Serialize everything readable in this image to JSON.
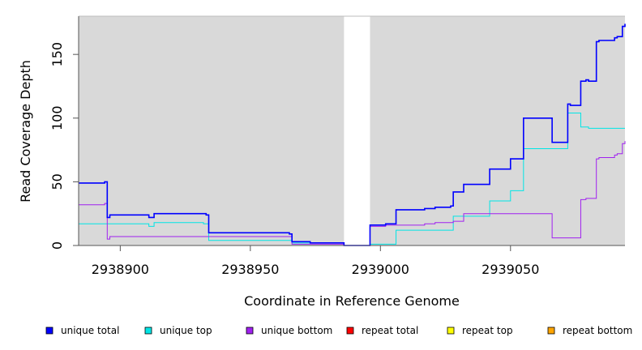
{
  "chart_data": {
    "type": "line",
    "xlabel": "Coordinate in Reference Genome",
    "ylabel": "Read Coverage Depth",
    "xlim": [
      2938884,
      2939094
    ],
    "ylim": [
      0,
      180
    ],
    "x_ticks": [
      2938900,
      2938950,
      2939000,
      2939050
    ],
    "y_ticks": [
      0,
      50,
      100,
      150
    ],
    "panel_background": "#d9d9d9",
    "grid": false,
    "gap": {
      "x_start": 2938986,
      "x_end": 2938996,
      "color": "#ffffff"
    },
    "series": [
      {
        "name": "unique total",
        "color": "#0000ff",
        "step": true,
        "points": [
          [
            2938884,
            49
          ],
          [
            2938894,
            49
          ],
          [
            2938894,
            50
          ],
          [
            2938895,
            50
          ],
          [
            2938895,
            22
          ],
          [
            2938896,
            22
          ],
          [
            2938896,
            24
          ],
          [
            2938911,
            24
          ],
          [
            2938911,
            22
          ],
          [
            2938913,
            22
          ],
          [
            2938913,
            25
          ],
          [
            2938933,
            25
          ],
          [
            2938933,
            24
          ],
          [
            2938934,
            24
          ],
          [
            2938934,
            10
          ],
          [
            2938965,
            10
          ],
          [
            2938965,
            9
          ],
          [
            2938966,
            9
          ],
          [
            2938966,
            3
          ],
          [
            2938973,
            3
          ],
          [
            2938973,
            2
          ],
          [
            2938986,
            2
          ],
          [
            2938986,
            0
          ],
          [
            2938996,
            0
          ],
          [
            2938996,
            16
          ],
          [
            2939002,
            16
          ],
          [
            2939002,
            17
          ],
          [
            2939006,
            17
          ],
          [
            2939006,
            28
          ],
          [
            2939017,
            28
          ],
          [
            2939017,
            29
          ],
          [
            2939021,
            29
          ],
          [
            2939021,
            30
          ],
          [
            2939027,
            30
          ],
          [
            2939027,
            31
          ],
          [
            2939028,
            31
          ],
          [
            2939028,
            42
          ],
          [
            2939032,
            42
          ],
          [
            2939032,
            48
          ],
          [
            2939042,
            48
          ],
          [
            2939042,
            60
          ],
          [
            2939050,
            60
          ],
          [
            2939050,
            68
          ],
          [
            2939055,
            68
          ],
          [
            2939055,
            100
          ],
          [
            2939066,
            100
          ],
          [
            2939066,
            81
          ],
          [
            2939072,
            81
          ],
          [
            2939072,
            111
          ],
          [
            2939073,
            111
          ],
          [
            2939073,
            110
          ],
          [
            2939077,
            110
          ],
          [
            2939077,
            129
          ],
          [
            2939079,
            129
          ],
          [
            2939079,
            130
          ],
          [
            2939080,
            130
          ],
          [
            2939080,
            129
          ],
          [
            2939083,
            129
          ],
          [
            2939083,
            160
          ],
          [
            2939084,
            160
          ],
          [
            2939084,
            161
          ],
          [
            2939090,
            161
          ],
          [
            2939090,
            163
          ],
          [
            2939091,
            163
          ],
          [
            2939091,
            164
          ],
          [
            2939093,
            164
          ],
          [
            2939093,
            172
          ],
          [
            2939094,
            172
          ],
          [
            2939094,
            174
          ]
        ]
      },
      {
        "name": "unique top",
        "color": "#00e5e5",
        "step": true,
        "points": [
          [
            2938884,
            17
          ],
          [
            2938911,
            17
          ],
          [
            2938911,
            15
          ],
          [
            2938913,
            15
          ],
          [
            2938913,
            18
          ],
          [
            2938932,
            18
          ],
          [
            2938932,
            17
          ],
          [
            2938934,
            17
          ],
          [
            2938934,
            4
          ],
          [
            2938966,
            4
          ],
          [
            2938966,
            2
          ],
          [
            2938986,
            2
          ],
          [
            2938986,
            0
          ],
          [
            2938996,
            0
          ],
          [
            2938996,
            1
          ],
          [
            2939006,
            1
          ],
          [
            2939006,
            12
          ],
          [
            2939028,
            12
          ],
          [
            2939028,
            23
          ],
          [
            2939042,
            23
          ],
          [
            2939042,
            35
          ],
          [
            2939050,
            35
          ],
          [
            2939050,
            43
          ],
          [
            2939055,
            43
          ],
          [
            2939055,
            76
          ],
          [
            2939072,
            76
          ],
          [
            2939072,
            104
          ],
          [
            2939077,
            104
          ],
          [
            2939077,
            93
          ],
          [
            2939080,
            93
          ],
          [
            2939080,
            92
          ],
          [
            2939094,
            92
          ]
        ]
      },
      {
        "name": "unique bottom",
        "color": "#a020f0",
        "step": true,
        "points": [
          [
            2938884,
            32
          ],
          [
            2938894,
            32
          ],
          [
            2938894,
            33
          ],
          [
            2938895,
            33
          ],
          [
            2938895,
            5
          ],
          [
            2938896,
            5
          ],
          [
            2938896,
            7
          ],
          [
            2938966,
            7
          ],
          [
            2938966,
            1
          ],
          [
            2938986,
            1
          ],
          [
            2938986,
            0
          ],
          [
            2938996,
            0
          ],
          [
            2938996,
            15
          ],
          [
            2939002,
            15
          ],
          [
            2939002,
            16
          ],
          [
            2939017,
            16
          ],
          [
            2939017,
            17
          ],
          [
            2939021,
            17
          ],
          [
            2939021,
            18
          ],
          [
            2939028,
            18
          ],
          [
            2939028,
            19
          ],
          [
            2939032,
            19
          ],
          [
            2939032,
            25
          ],
          [
            2939066,
            25
          ],
          [
            2939066,
            6
          ],
          [
            2939077,
            6
          ],
          [
            2939077,
            36
          ],
          [
            2939079,
            36
          ],
          [
            2939079,
            37
          ],
          [
            2939083,
            37
          ],
          [
            2939083,
            68
          ],
          [
            2939084,
            68
          ],
          [
            2939084,
            69
          ],
          [
            2939090,
            69
          ],
          [
            2939090,
            71
          ],
          [
            2939091,
            71
          ],
          [
            2939091,
            72
          ],
          [
            2939093,
            72
          ],
          [
            2939093,
            80
          ],
          [
            2939094,
            80
          ],
          [
            2939094,
            82
          ]
        ]
      },
      {
        "name": "repeat total",
        "color": "#ff0000",
        "step": true,
        "points": [
          [
            2938884,
            0
          ],
          [
            2939094,
            0
          ]
        ]
      },
      {
        "name": "repeat top",
        "color": "#ffff00",
        "step": true,
        "points": [
          [
            2938884,
            0
          ],
          [
            2939094,
            0
          ]
        ]
      },
      {
        "name": "repeat bottom",
        "color": "#ffa500",
        "step": true,
        "points": [
          [
            2938884,
            0
          ],
          [
            2939094,
            0
          ]
        ]
      }
    ],
    "legend": {
      "placement": "bottom",
      "entries": [
        {
          "label": "unique total",
          "color": "#0000ff"
        },
        {
          "label": "unique top",
          "color": "#00e5e5"
        },
        {
          "label": "unique bottom",
          "color": "#a020f0"
        },
        {
          "label": "repeat total",
          "color": "#ff0000"
        },
        {
          "label": "repeat top",
          "color": "#ffff00"
        },
        {
          "label": "repeat bottom",
          "color": "#ffa500"
        }
      ]
    }
  }
}
